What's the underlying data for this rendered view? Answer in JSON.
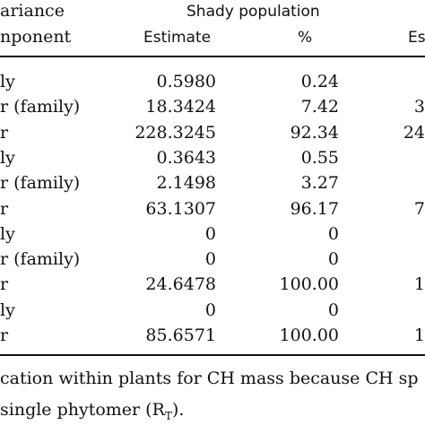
{
  "header": {
    "variance_line1": "ariance",
    "variance_line2": "nponent",
    "shady_population": "Shady population",
    "estimate": "Estimate",
    "percent": "%",
    "cut_estimate": "Es"
  },
  "rows": [
    {
      "label": "ly",
      "estimate": "0.5980",
      "percent": "0.24",
      "right": ""
    },
    {
      "label": "r (family)",
      "estimate": "18.3424",
      "percent": "7.42",
      "right": "3"
    },
    {
      "label": "r",
      "estimate": "228.3245",
      "percent": "92.34",
      "right": "24"
    },
    {
      "label": "ly",
      "estimate": "0.3643",
      "percent": "0.55",
      "right": ""
    },
    {
      "label": "r (family)",
      "estimate": "2.1498",
      "percent": "3.27",
      "right": ""
    },
    {
      "label": "r",
      "estimate": "63.1307",
      "percent": "96.17",
      "right": "7"
    },
    {
      "label": "ly",
      "estimate": "0",
      "percent": "0",
      "right": ""
    },
    {
      "label": "r (family)",
      "estimate": "0",
      "percent": "0",
      "right": ""
    },
    {
      "label": "r",
      "estimate": "24.6478",
      "percent": "100.00",
      "right": "1"
    },
    {
      "label": "ly",
      "estimate": "0",
      "percent": "0",
      "right": ""
    },
    {
      "label": "r",
      "estimate": "85.6571",
      "percent": "100.00",
      "right": "1"
    }
  ],
  "footnote": {
    "line1": "cation within plants for CH mass because CH sp",
    "line2_pre": "single phytomer (R",
    "line2_sub": "T",
    "line2_post": ")."
  }
}
